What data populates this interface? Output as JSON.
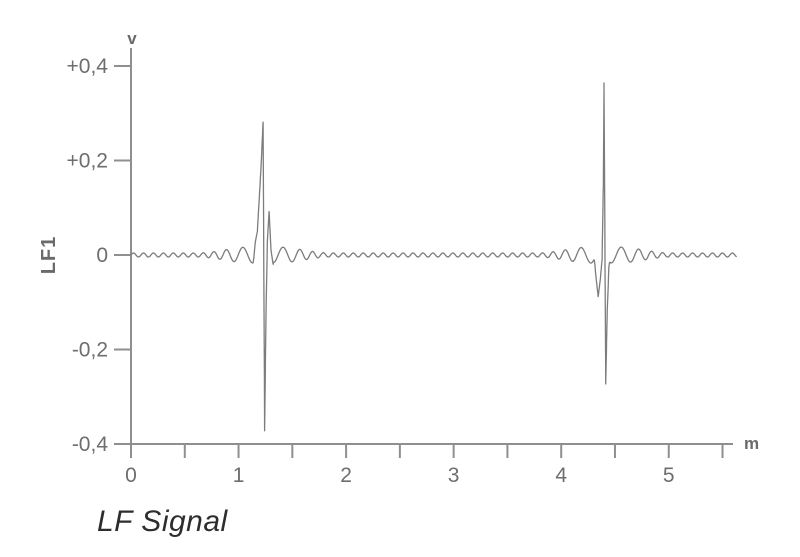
{
  "page": {
    "background": "#ffffff"
  },
  "chart_data": {
    "type": "line",
    "title": "LF Signal",
    "xlabel": "m",
    "ylabel": "v",
    "series_label": "LF1",
    "xlim": [
      0,
      5.63
    ],
    "ylim": [
      -0.4,
      0.4
    ],
    "x_major_tick_values": [
      0,
      1,
      2,
      3,
      4,
      5
    ],
    "x_tick_labels": [
      "0",
      "1",
      "2",
      "3",
      "4",
      "5"
    ],
    "x_minor_tick_step": 0.5,
    "x_minor_tick_max": 5.5,
    "y_tick_values": [
      0.4,
      0.2,
      0,
      -0.2,
      -0.4
    ],
    "y_tick_labels": [
      "+0,4",
      "+0,2",
      "0",
      "-0,2",
      "-0,4"
    ],
    "grid": false,
    "legend_position": "none",
    "colors": {
      "curve": "#7c7c7c",
      "axis": "#8f8f8f",
      "tick_text": "#6e6e6e",
      "unit_text": "#6a6a6a",
      "title_text": "#2d2d2d"
    },
    "signal": {
      "baseline_v": 0,
      "x_start_m": 0,
      "x_end_m": 5.63,
      "background_ripple": {
        "freq_far_cycles_per_m": 10.8,
        "freq_near_cycles_per_m": 5.3,
        "amp_far_v": 0.0042,
        "amp_near_v": 0.017,
        "near_radius_m": 0.12,
        "far_radius_m": 0.62
      },
      "wavelets": [
        {
          "center_m": 1.235,
          "peak_v": 0.281,
          "trough_v": -0.372,
          "keypoints": [
            [
              1.132,
              0
            ],
            [
              1.175,
              0.05
            ],
            [
              1.21,
              0.19
            ],
            [
              1.228,
              0.281
            ],
            [
              1.2425,
              -0.372
            ],
            [
              1.255,
              -0.13
            ],
            [
              1.268,
              0.03
            ],
            [
              1.284,
              0.092
            ],
            [
              1.302,
              0.01
            ],
            [
              1.322,
              -0.021
            ],
            [
              1.338,
              0
            ]
          ]
        },
        {
          "center_m": 4.4,
          "peak_v": 0.364,
          "trough_v": -0.273,
          "keypoints": [
            [
              4.298,
              0
            ],
            [
              4.32,
              -0.04
            ],
            [
              4.344,
              -0.088
            ],
            [
              4.362,
              -0.055
            ],
            [
              4.38,
              -0.01
            ],
            [
              4.392,
              0.15
            ],
            [
              4.398,
              0.364
            ],
            [
              4.414,
              -0.273
            ],
            [
              4.428,
              -0.12
            ],
            [
              4.443,
              -0.03
            ],
            [
              4.46,
              0
            ]
          ]
        }
      ]
    }
  }
}
